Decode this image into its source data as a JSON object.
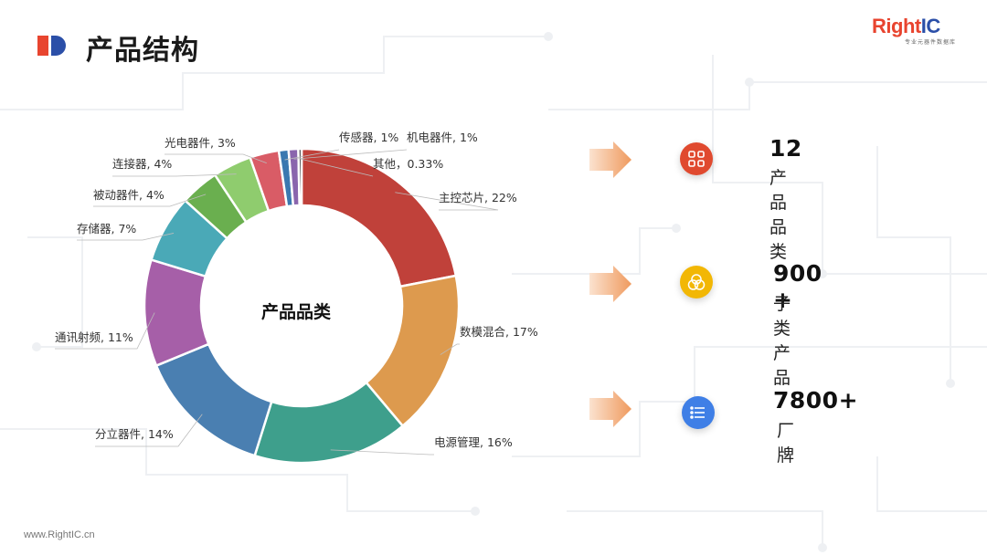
{
  "header": {
    "title": "产品结构",
    "logo_text_red": "Right",
    "logo_text_blue": "IC",
    "logo_subtitle": "专业元器件数据库",
    "logo_accent": "#e8442f"
  },
  "chart_data": {
    "type": "pie",
    "center_label": "产品品类",
    "slices": [
      {
        "name": "主控芯片",
        "value": 22,
        "label": "主控芯片, 22%",
        "color": "#c0413a"
      },
      {
        "name": "数模混合",
        "value": 17,
        "label": "数模混合, 17%",
        "color": "#dd9a4e"
      },
      {
        "name": "电源管理",
        "value": 16,
        "label": "电源管理, 16%",
        "color": "#3e9f8c"
      },
      {
        "name": "分立器件",
        "value": 14,
        "label": "分立器件, 14%",
        "color": "#4a7fb1"
      },
      {
        "name": "通讯射频",
        "value": 11,
        "label": "通讯射频, 11%",
        "color": "#a65fa8"
      },
      {
        "name": "存储器",
        "value": 7,
        "label": "存储器, 7%",
        "color": "#4aa9b7"
      },
      {
        "name": "被动器件",
        "value": 4,
        "label": "被动器件, 4%",
        "color": "#6aaf4f"
      },
      {
        "name": "连接器",
        "value": 4,
        "label": "连接器, 4%",
        "color": "#8fcc6e"
      },
      {
        "name": "光电器件",
        "value": 3,
        "label": "光电器件, 3%",
        "color": "#d95c66"
      },
      {
        "name": "传感器",
        "value": 1,
        "label": "传感器, 1%",
        "color": "#3b78b0"
      },
      {
        "name": "机电器件",
        "value": 1,
        "label": "机电器件, 1%",
        "color": "#8a65ad"
      },
      {
        "name": "其他",
        "value": 0.33,
        "label": "其他，0.33%",
        "color": "#222222"
      }
    ]
  },
  "stats": [
    {
      "value": "12",
      "label": "产品品类",
      "icon": "grid-icon",
      "icon_color": "#e04a2f"
    },
    {
      "value": "900 +",
      "label": "子类产品",
      "icon": "trefoil-icon",
      "icon_color": "#f2b705"
    },
    {
      "value": "7800+",
      "label": "厂牌",
      "icon": "list-icon",
      "icon_color": "#3f7fe6"
    }
  ],
  "footer": {
    "url": "www.RightIC.cn"
  }
}
